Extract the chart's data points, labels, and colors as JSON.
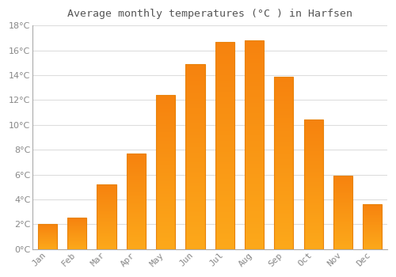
{
  "title": "Average monthly temperatures (°C ) in Harfsen",
  "months": [
    "Jan",
    "Feb",
    "Mar",
    "Apr",
    "May",
    "Jun",
    "Jul",
    "Aug",
    "Sep",
    "Oct",
    "Nov",
    "Dec"
  ],
  "values": [
    2.0,
    2.5,
    5.2,
    7.7,
    12.4,
    14.9,
    16.7,
    16.8,
    13.9,
    10.4,
    5.9,
    3.6
  ],
  "bar_color": "#FCA429",
  "bar_edge_color": "#E8820A",
  "ylim": [
    0,
    18
  ],
  "yticks": [
    0,
    2,
    4,
    6,
    8,
    10,
    12,
    14,
    16,
    18
  ],
  "background_color": "#ffffff",
  "grid_color": "#dddddd",
  "title_fontsize": 9.5,
  "tick_fontsize": 8,
  "tick_color": "#888888",
  "title_color": "#555555"
}
